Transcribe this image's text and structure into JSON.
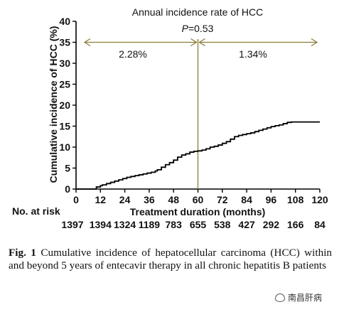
{
  "chart_data": {
    "type": "line",
    "title": "Annual incidence rate of HCC",
    "p_value_label_prefix": "P",
    "p_value_label_suffix": "=0.53",
    "rate_before": "2.28%",
    "rate_after": "1.34%",
    "xlabel": "Treatment duration (months)",
    "ylabel": "Cumulative incidence of HCC (%)",
    "xlim": [
      0,
      120
    ],
    "ylim": [
      0,
      40
    ],
    "x_ticks": [
      0,
      12,
      24,
      36,
      48,
      60,
      72,
      84,
      96,
      108,
      120
    ],
    "y_ticks": [
      0,
      5,
      10,
      15,
      20,
      25,
      30,
      35,
      40
    ],
    "x_tick_labels": [
      "0",
      "12",
      "24",
      "36",
      "48",
      "60",
      "72",
      "84",
      "96",
      "108",
      "120"
    ],
    "y_tick_labels": [
      "0",
      "5",
      "10",
      "15",
      "20",
      "25",
      "30",
      "35",
      "40"
    ],
    "vertical_line_x": 60,
    "series": [
      {
        "x": [
          0,
          9,
          10,
          12,
          13,
          15,
          17,
          19,
          21,
          23,
          25,
          27,
          29,
          31,
          33,
          35,
          37,
          39,
          40,
          42,
          44,
          46,
          48,
          50,
          52,
          54,
          56,
          58,
          60,
          62,
          64,
          66,
          68,
          70,
          72,
          74,
          76,
          78,
          80,
          82,
          84,
          86,
          88,
          90,
          92,
          94,
          96,
          98,
          100,
          102,
          104,
          106,
          108,
          110,
          112,
          114,
          116,
          118,
          120
        ],
        "y": [
          0,
          0,
          0.5,
          0.8,
          1.0,
          1.3,
          1.6,
          1.9,
          2.2,
          2.5,
          2.8,
          3.0,
          3.2,
          3.4,
          3.6,
          3.8,
          4.0,
          4.3,
          4.6,
          5.2,
          5.8,
          6.3,
          6.9,
          7.6,
          8.1,
          8.4,
          8.8,
          9.0,
          9.1,
          9.3,
          9.6,
          10.0,
          10.2,
          10.5,
          10.9,
          11.3,
          11.9,
          12.5,
          12.8,
          13.0,
          13.2,
          13.4,
          13.7,
          14.0,
          14.3,
          14.6,
          14.9,
          15.1,
          15.3,
          15.6,
          15.9,
          16.0,
          16.0,
          16.0,
          16.0,
          16.0,
          16.0,
          16.0,
          16.0
        ]
      }
    ],
    "risk_table": {
      "label": "No. at risk",
      "values": [
        "1397",
        "1394",
        "1324",
        "1189",
        "783",
        "655",
        "538",
        "427",
        "292",
        "166",
        "84"
      ]
    },
    "colors": {
      "curve": "#000000",
      "annotation": "#8b7d3a"
    }
  },
  "caption": {
    "fig_label": "Fig. 1",
    "text": "Cumulative incidence of hepatocellular carcinoma (HCC) within and beyond 5 years of entecavir therapy in all chronic hepatitis B patients"
  },
  "watermark": {
    "icon": "wechat-icon",
    "text": "南昌肝病"
  }
}
